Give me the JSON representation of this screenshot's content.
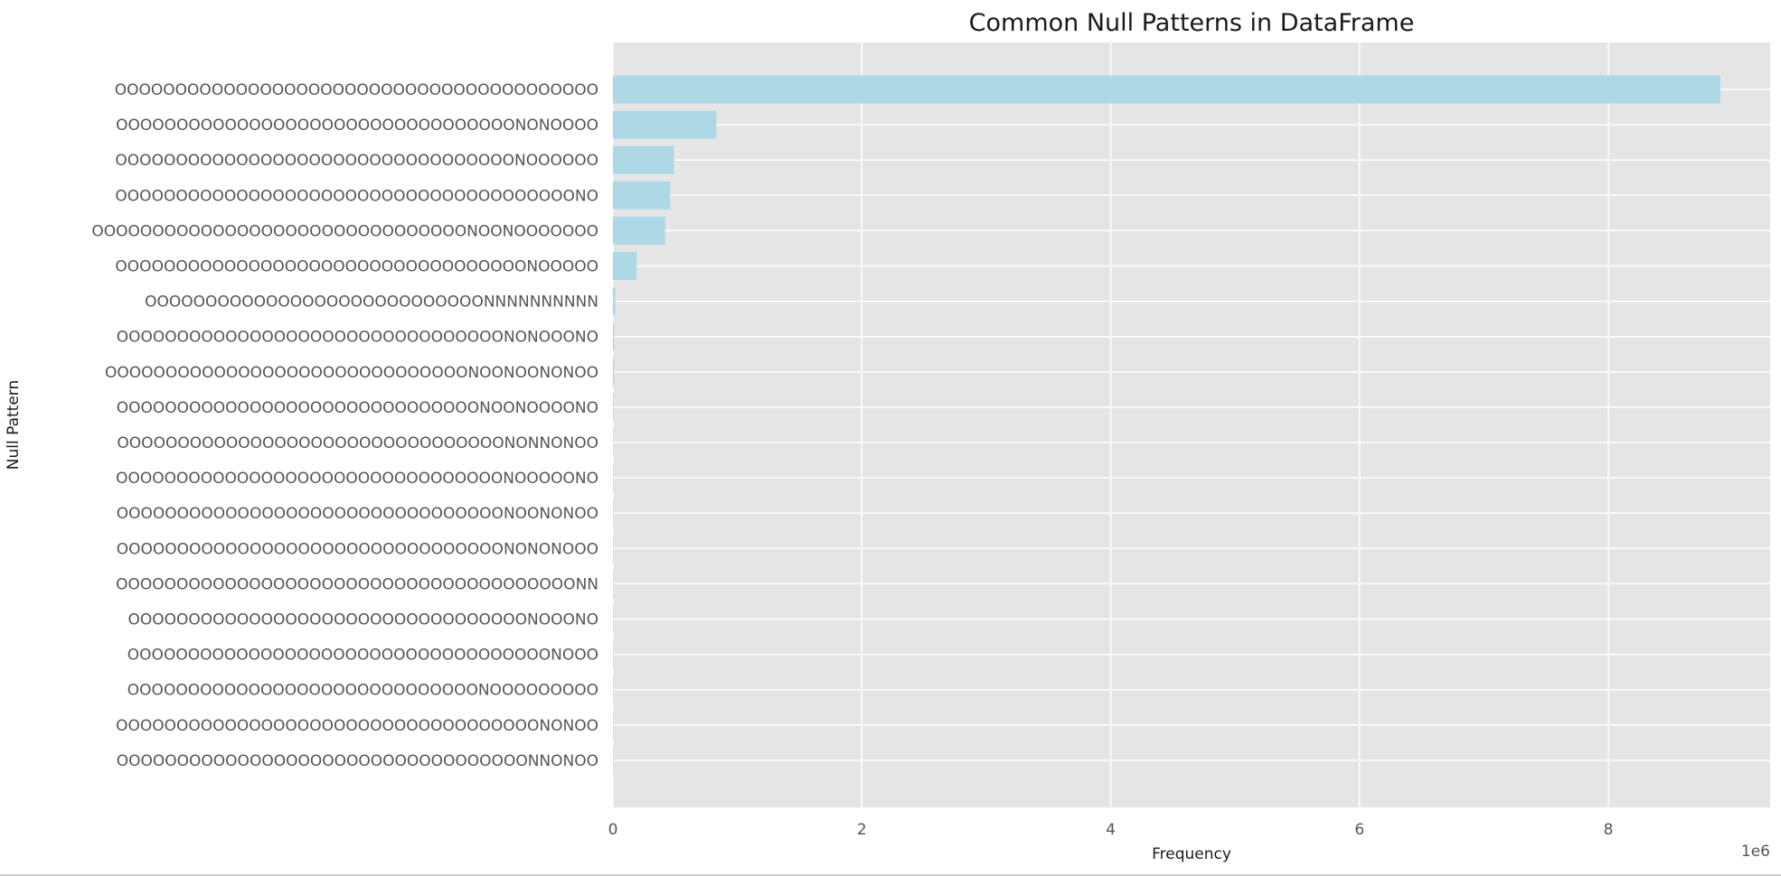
{
  "chart_data": {
    "type": "bar",
    "orientation": "horizontal",
    "title": "Common Null Patterns in DataFrame",
    "xlabel": "Frequency",
    "ylabel": "Null Pattern",
    "x_offset_label": "1e6",
    "xlim": [
      0,
      9.3
    ],
    "x_ticks": [
      0,
      2,
      4,
      6,
      8
    ],
    "grid": true,
    "legend": "none",
    "bar_color": "#add8e6",
    "categories": [
      "OOOOOOOOOOOOOOOOOOOOOOOOOOOOOOOOOOOOOOOO",
      "OOOOOOOOOOOOOOOOOOOOOOOOOOOOOOOOONONOOOO",
      "OOOOOOOOOOOOOOOOOOOOOOOOOOOOOOOOONOOOOOO",
      "OOOOOOOOOOOOOOOOOOOOOOOOOOOOOOOOOOOOOONO",
      "OOOOOOOOOOOOOOOOOOOOOOOOOOOOOOONOONOOOOOOO",
      "OOOOOOOOOOOOOOOOOOOOOOOOOOOOOOOOOONOOOOO",
      "OOOOOOOOOOOOOOOOOOOOOOOOOOOONNNNNNNNNN",
      "OOOOOOOOOOOOOOOOOOOOOOOOOOOOOOOONONOOONO",
      "OOOOOOOOOOOOOOOOOOOOOOOOOOOOOONOONOONONOO",
      "OOOOOOOOOOOOOOOOOOOOOOOOOOOOOONOONOOOONO",
      "OOOOOOOOOOOOOOOOOOOOOOOOOOOOOOOONONNONOO",
      "OOOOOOOOOOOOOOOOOOOOOOOOOOOOOOOONOOOOONO",
      "OOOOOOOOOOOOOOOOOOOOOOOOOOOOOOOONOONONOO",
      "OOOOOOOOOOOOOOOOOOOOOOOOOOOOOOOONONONOOO",
      "OOOOOOOOOOOOOOOOOOOOOOOOOOOOOOOOOOOOOONN",
      "OOOOOOOOOOOOOOOOOOOOOOOOOOOOOOOOONOOONO",
      "OOOOOOOOOOOOOOOOOOOOOOOOOOOOOOOOOOONOOO",
      "OOOOOOOOOOOOOOOOOOOOOOOOOOOOONOOOOOOOOO",
      "OOOOOOOOOOOOOOOOOOOOOOOOOOOOOOOOOOONONOO",
      "OOOOOOOOOOOOOOOOOOOOOOOOOOOOOOOOOONNONOO"
    ],
    "values": [
      8.9,
      0.83,
      0.49,
      0.46,
      0.42,
      0.19,
      0.018,
      0.01,
      0.008,
      0.005,
      0.004,
      0.003,
      0.003,
      0.002,
      0.002,
      0.002,
      0.001,
      0.001,
      0.001,
      0.001
    ]
  }
}
